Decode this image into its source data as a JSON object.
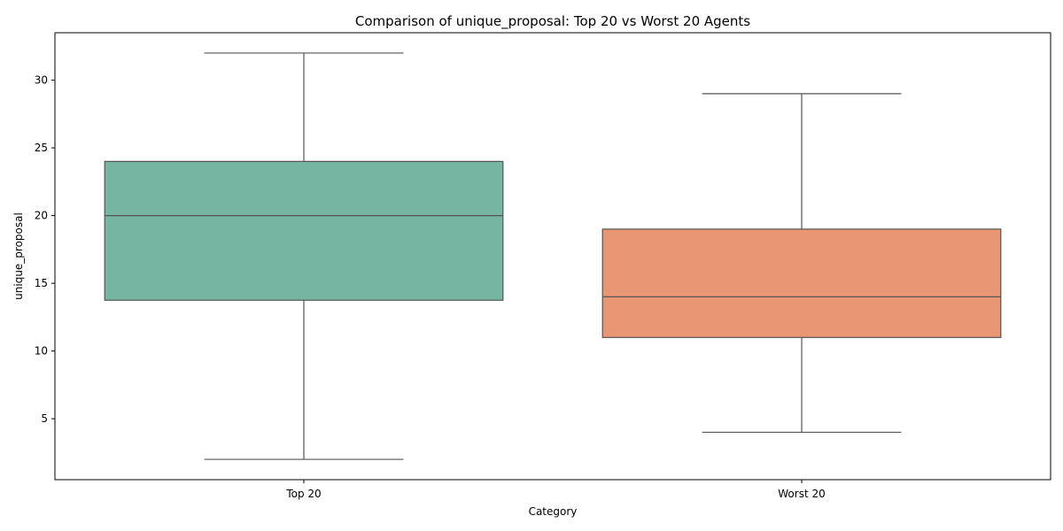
{
  "chart_data": {
    "type": "box",
    "title": "Comparison of unique_proposal: Top 20 vs Worst 20 Agents",
    "xlabel": "Category",
    "ylabel": "unique_proposal",
    "ylim": [
      0.5,
      33.5
    ],
    "yticks": [
      5,
      10,
      15,
      20,
      25,
      30
    ],
    "grid": false,
    "categories": [
      "Top 20",
      "Worst 20"
    ],
    "boxes": [
      {
        "category": "Top 20",
        "whisker_low": 2,
        "q1": 13.75,
        "median": 20,
        "q3": 24,
        "whisker_high": 32,
        "color": "#75b5a2"
      },
      {
        "category": "Worst 20",
        "whisker_low": 4,
        "q1": 11,
        "median": 14,
        "q3": 19,
        "whisker_high": 29,
        "color": "#e99674"
      }
    ],
    "line_color": "#555555"
  }
}
